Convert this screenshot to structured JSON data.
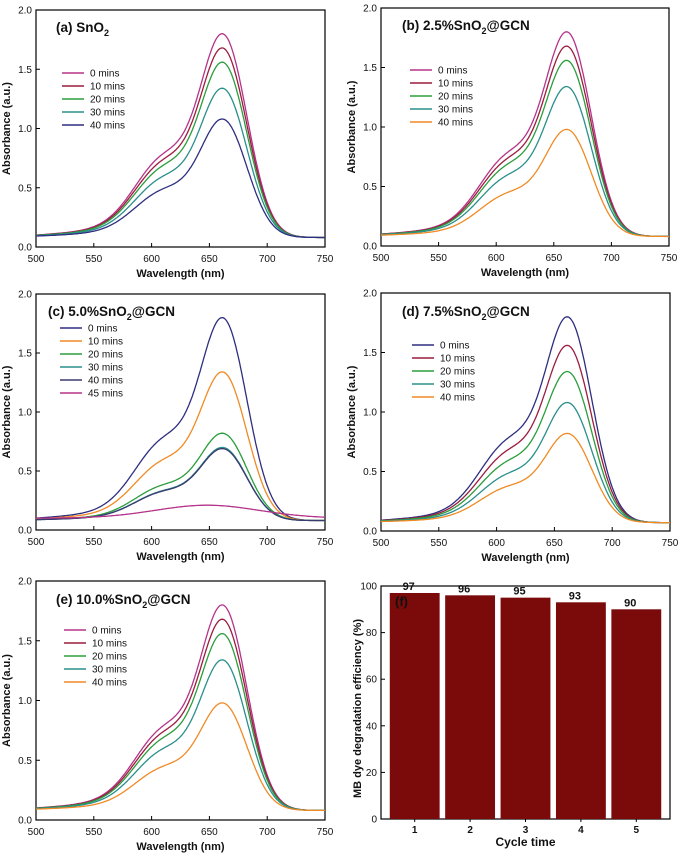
{
  "chart_data": [
    {
      "type": "line",
      "panel": "a",
      "title": "(a) SnO",
      "title_sub": "2",
      "xlabel": "Wavelength (nm)",
      "ylabel": "Absorbance (a.u.)",
      "xlim": [
        500,
        750
      ],
      "ylim": [
        0,
        2.0
      ],
      "xticks": [
        "500",
        "550",
        "600",
        "650",
        "700",
        "750"
      ],
      "yticks": [
        "0.0",
        "0.5",
        "1.0",
        "1.5",
        "2.0"
      ],
      "legend": "top-left",
      "series": [
        {
          "name": "0 mins",
          "color": "#b5338a",
          "peak": 1.8,
          "base": 0.08
        },
        {
          "name": "10 mins",
          "color": "#9b1d3f",
          "peak": 1.68,
          "base": 0.08
        },
        {
          "name": "20 mins",
          "color": "#2a9d3c",
          "peak": 1.56,
          "base": 0.08
        },
        {
          "name": "30 mins",
          "color": "#2a8f8a",
          "peak": 1.34,
          "base": 0.08
        },
        {
          "name": "40 mins",
          "color": "#2e2e80",
          "peak": 1.08,
          "base": 0.08
        }
      ]
    },
    {
      "type": "line",
      "panel": "b",
      "title": "(b) 2.5%SnO",
      "title_sub": "2",
      "title_tail": "@GCN",
      "xlabel": "Wavelength (nm)",
      "ylabel": "Absorbance (a.u.)",
      "xlim": [
        500,
        750
      ],
      "ylim": [
        0,
        2.0
      ],
      "xticks": [
        "500",
        "550",
        "600",
        "650",
        "700",
        "750"
      ],
      "yticks": [
        "0.0",
        "0.5",
        "1.0",
        "1.5",
        "2.0"
      ],
      "legend": "top-left",
      "series": [
        {
          "name": "0 mins",
          "color": "#b5338a",
          "peak": 1.8,
          "base": 0.08
        },
        {
          "name": "10 mins",
          "color": "#9b1d3f",
          "peak": 1.68,
          "base": 0.08
        },
        {
          "name": "20 mins",
          "color": "#2a9d3c",
          "peak": 1.56,
          "base": 0.08
        },
        {
          "name": "30 mins",
          "color": "#2a8f8a",
          "peak": 1.34,
          "base": 0.08
        },
        {
          "name": "40 mins",
          "color": "#f08a24",
          "peak": 0.98,
          "base": 0.08
        }
      ]
    },
    {
      "type": "line",
      "panel": "c",
      "title": "(c) 5.0%SnO",
      "title_sub": "2",
      "title_tail": "@GCN",
      "xlabel": "Wavelength (nm)",
      "ylabel": "Absorbance (a.u.)",
      "xlim": [
        500,
        750
      ],
      "ylim": [
        0,
        2.0
      ],
      "xticks": [
        "500",
        "550",
        "600",
        "650",
        "700",
        "750"
      ],
      "yticks": [
        "0.0",
        "0.5",
        "1.0",
        "1.5",
        "2.0"
      ],
      "legend": "top-left",
      "series": [
        {
          "name": "0 mins",
          "color": "#2e2e80",
          "peak": 1.8,
          "base": 0.08
        },
        {
          "name": "10 mins",
          "color": "#f08a24",
          "peak": 1.34,
          "base": 0.08
        },
        {
          "name": "20 mins",
          "color": "#2a9d3c",
          "peak": 0.82,
          "base": 0.08
        },
        {
          "name": "30 mins",
          "color": "#2a8f8a",
          "peak": 0.7,
          "base": 0.08
        },
        {
          "name": "40 mins",
          "color": "#3a3a70",
          "peak": 0.69,
          "base": 0.08
        },
        {
          "name": "45 mins",
          "color": "#b5338a",
          "peak": 0.21,
          "base": 0.1,
          "flat": true
        }
      ]
    },
    {
      "type": "line",
      "panel": "d",
      "title": "(d) 7.5%SnO",
      "title_sub": "2",
      "title_tail": "@GCN",
      "xlabel": "Wavelength (nm)",
      "ylabel": "Absorbance (a.u.)",
      "xlim": [
        500,
        750
      ],
      "ylim": [
        0,
        2.0
      ],
      "xticks": [
        "500",
        "550",
        "600",
        "650",
        "700",
        "750"
      ],
      "yticks": [
        "0.0",
        "0.5",
        "1.0",
        "1.5",
        "2.0"
      ],
      "legend": "top-left",
      "series": [
        {
          "name": "0 mins",
          "color": "#2e2e80",
          "peak": 1.8,
          "base": 0.07
        },
        {
          "name": "10 mins",
          "color": "#9b1d3f",
          "peak": 1.56,
          "base": 0.07
        },
        {
          "name": "20 mins",
          "color": "#2a9d3c",
          "peak": 1.34,
          "base": 0.07
        },
        {
          "name": "30 mins",
          "color": "#2a8f8a",
          "peak": 1.08,
          "base": 0.07
        },
        {
          "name": "40 mins",
          "color": "#f08a24",
          "peak": 0.82,
          "base": 0.07
        }
      ]
    },
    {
      "type": "line",
      "panel": "e",
      "title": "(e) 10.0%SnO",
      "title_sub": "2",
      "title_tail": "@GCN",
      "xlabel": "Wavelength (nm)",
      "ylabel": "Absorbance (a.u.)",
      "xlim": [
        500,
        750
      ],
      "ylim": [
        0,
        2.0
      ],
      "xticks": [
        "500",
        "550",
        "600",
        "650",
        "700",
        "750"
      ],
      "yticks": [
        "0.0",
        "0.5",
        "1.0",
        "1.5",
        "2.0"
      ],
      "legend": "top-left",
      "series": [
        {
          "name": "0 mins",
          "color": "#b5338a",
          "peak": 1.8,
          "base": 0.08
        },
        {
          "name": "10 mins",
          "color": "#9b1d3f",
          "peak": 1.68,
          "base": 0.08
        },
        {
          "name": "20 mins",
          "color": "#2a9d3c",
          "peak": 1.56,
          "base": 0.08
        },
        {
          "name": "30 mins",
          "color": "#2a8f8a",
          "peak": 1.34,
          "base": 0.08
        },
        {
          "name": "40 mins",
          "color": "#f08a24",
          "peak": 0.98,
          "base": 0.08
        }
      ]
    },
    {
      "type": "bar",
      "panel": "f",
      "title": "(f)",
      "xlabel": "Cycle time",
      "ylabel": "MB dye degradation efficiency (%)",
      "categories": [
        "1",
        "2",
        "3",
        "4",
        "5"
      ],
      "values": [
        97,
        96,
        95,
        93,
        90
      ],
      "data_labels": [
        "97",
        "96",
        "95",
        "93",
        "90"
      ],
      "ylim": [
        0,
        100
      ],
      "yticks": [
        "0",
        "20",
        "40",
        "60",
        "80",
        "100"
      ],
      "bar_color": "#7b0a0a"
    }
  ]
}
